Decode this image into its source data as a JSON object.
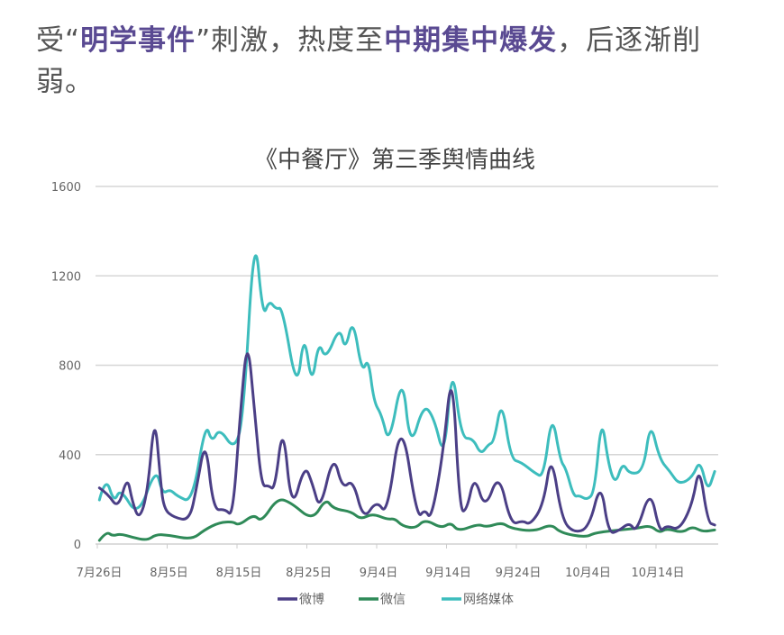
{
  "headline": {
    "p1": "受",
    "q_open": "“",
    "h1": "明学事件",
    "q_close": "”",
    "p2": "刺激，热度至",
    "h2": "中期集中爆发",
    "p3": "，后逐渐削弱。"
  },
  "chart_data": {
    "type": "line",
    "title": "《中餐厅》第三季舆情曲线",
    "xlabel": "",
    "ylabel": "",
    "x_unit": "days since 7月26日",
    "xlim": [
      0,
      88.5
    ],
    "ylim": [
      0,
      1600
    ],
    "yticks": [
      0,
      400,
      800,
      1200,
      1600
    ],
    "xticks": [
      {
        "day": 0,
        "label": "7月26日"
      },
      {
        "day": 10,
        "label": "8月5日"
      },
      {
        "day": 20,
        "label": "8月15日"
      },
      {
        "day": 30,
        "label": "8月25日"
      },
      {
        "day": 40,
        "label": "9月4日"
      },
      {
        "day": 50,
        "label": "9月14日"
      },
      {
        "day": 60,
        "label": "9月24日"
      },
      {
        "day": 70,
        "label": "10月4日"
      },
      {
        "day": 80,
        "label": "10月14日"
      }
    ],
    "grid": true,
    "legend_position": "bottom",
    "series": [
      {
        "name": "微博",
        "color": "#4b3f86",
        "points": [
          [
            0.3,
            251
          ],
          [
            1.5,
            225
          ],
          [
            3,
            157
          ],
          [
            4.3,
            306
          ],
          [
            5,
            190
          ],
          [
            6,
            105
          ],
          [
            7.2,
            230
          ],
          [
            8.2,
            588
          ],
          [
            9,
            300
          ],
          [
            9.5,
            157
          ],
          [
            11,
            118
          ],
          [
            13.2,
            105
          ],
          [
            14.2,
            250
          ],
          [
            15.5,
            480
          ],
          [
            16.6,
            150
          ],
          [
            18.3,
            157
          ],
          [
            19.4,
            120
          ],
          [
            20.5,
            600
          ],
          [
            21.5,
            936
          ],
          [
            22.5,
            600
          ],
          [
            23.5,
            258
          ],
          [
            24.5,
            262
          ],
          [
            25.4,
            240
          ],
          [
            26.6,
            553
          ],
          [
            27.8,
            137
          ],
          [
            29.7,
            358
          ],
          [
            30.8,
            270
          ],
          [
            31.9,
            145
          ],
          [
            33.8,
            407
          ],
          [
            35.1,
            245
          ],
          [
            36.6,
            291
          ],
          [
            38.1,
            105
          ],
          [
            40,
            197
          ],
          [
            41.5,
            125
          ],
          [
            43.5,
            588
          ],
          [
            45.8,
            110
          ],
          [
            46.9,
            157
          ],
          [
            47.8,
            105
          ],
          [
            49.5,
            400
          ],
          [
            50.8,
            815
          ],
          [
            51.9,
            145
          ],
          [
            52.9,
            150
          ],
          [
            54,
            312
          ],
          [
            55.5,
            150
          ],
          [
            57.5,
            325
          ],
          [
            59.2,
            85
          ],
          [
            60.9,
            105
          ],
          [
            62,
            85
          ],
          [
            63.9,
            177
          ],
          [
            65,
            412
          ],
          [
            66.5,
            110
          ],
          [
            68.2,
            50
          ],
          [
            70.4,
            70
          ],
          [
            72.1,
            285
          ],
          [
            73.2,
            44
          ],
          [
            74.7,
            60
          ],
          [
            76.2,
            97
          ],
          [
            77.2,
            50
          ],
          [
            79.2,
            251
          ],
          [
            80.5,
            50
          ],
          [
            81.5,
            85
          ],
          [
            83.3,
            60
          ],
          [
            85.2,
            177
          ],
          [
            86.2,
            358
          ],
          [
            87.4,
            97
          ],
          [
            88.4,
            85
          ]
        ]
      },
      {
        "name": "微信",
        "color": "#2f8a58",
        "points": [
          [
            0.3,
            16
          ],
          [
            1.3,
            56
          ],
          [
            2.2,
            36
          ],
          [
            3.3,
            46
          ],
          [
            5,
            30
          ],
          [
            7.1,
            16
          ],
          [
            8.4,
            43
          ],
          [
            10.2,
            40
          ],
          [
            13.6,
            20
          ],
          [
            15.3,
            63
          ],
          [
            17.5,
            97
          ],
          [
            19.4,
            100
          ],
          [
            20.3,
            83
          ],
          [
            22.4,
            134
          ],
          [
            23.5,
            97
          ],
          [
            25.8,
            207
          ],
          [
            27.8,
            184
          ],
          [
            30.8,
            104
          ],
          [
            32.7,
            204
          ],
          [
            33.8,
            157
          ],
          [
            36.4,
            145
          ],
          [
            37.7,
            110
          ],
          [
            39.4,
            137
          ],
          [
            41.5,
            110
          ],
          [
            42.6,
            114
          ],
          [
            43.7,
            80
          ],
          [
            45.6,
            70
          ],
          [
            46.9,
            111
          ],
          [
            49.3,
            70
          ],
          [
            50.6,
            97
          ],
          [
            51.7,
            56
          ],
          [
            54.5,
            90
          ],
          [
            55.7,
            75
          ],
          [
            57.9,
            97
          ],
          [
            59.2,
            70
          ],
          [
            62.6,
            56
          ],
          [
            65,
            90
          ],
          [
            66.3,
            50
          ],
          [
            69.9,
            30
          ],
          [
            71.2,
            50
          ],
          [
            74.7,
            63
          ],
          [
            77.2,
            70
          ],
          [
            79.2,
            83
          ],
          [
            80.5,
            50
          ],
          [
            81.5,
            70
          ],
          [
            83.7,
            50
          ],
          [
            85.2,
            79
          ],
          [
            86.7,
            55
          ],
          [
            88.4,
            63
          ]
        ]
      },
      {
        "name": "网络媒体",
        "color": "#3dbdbd",
        "points": [
          [
            0.3,
            197
          ],
          [
            1.2,
            305
          ],
          [
            2.4,
            184
          ],
          [
            3.3,
            251
          ],
          [
            5.8,
            117
          ],
          [
            8.4,
            345
          ],
          [
            9.3,
            224
          ],
          [
            10.4,
            245
          ],
          [
            11.4,
            215
          ],
          [
            13.6,
            184
          ],
          [
            15.5,
            547
          ],
          [
            16.4,
            453
          ],
          [
            17.5,
            520
          ],
          [
            19.6,
            419
          ],
          [
            20.9,
            553
          ],
          [
            22.5,
            1433
          ],
          [
            23.7,
            1010
          ],
          [
            24.6,
            1091
          ],
          [
            25.6,
            1050
          ],
          [
            26.5,
            1060
          ],
          [
            28.6,
            674
          ],
          [
            29.6,
            956
          ],
          [
            30.7,
            701
          ],
          [
            31.7,
            910
          ],
          [
            32.7,
            822
          ],
          [
            34.7,
            976
          ],
          [
            35.5,
            862
          ],
          [
            36.6,
            1017
          ],
          [
            37.9,
            762
          ],
          [
            38.8,
            836
          ],
          [
            39.6,
            634
          ],
          [
            40.7,
            580
          ],
          [
            41.8,
            439
          ],
          [
            43.7,
            775
          ],
          [
            44.8,
            419
          ],
          [
            46.7,
            627
          ],
          [
            48.2,
            567
          ],
          [
            49.7,
            372
          ],
          [
            50.8,
            822
          ],
          [
            52.1,
            473
          ],
          [
            53.8,
            473
          ],
          [
            54.9,
            399
          ],
          [
            56,
            446
          ],
          [
            56.8,
            456
          ],
          [
            57.9,
            654
          ],
          [
            59.2,
            379
          ],
          [
            60.7,
            366
          ],
          [
            62.6,
            318
          ],
          [
            63.9,
            298
          ],
          [
            65.1,
            594
          ],
          [
            66.3,
            372
          ],
          [
            67.1,
            338
          ],
          [
            68.2,
            211
          ],
          [
            69,
            218
          ],
          [
            70.1,
            197
          ],
          [
            71.2,
            231
          ],
          [
            72.2,
            580
          ],
          [
            73.2,
            352
          ],
          [
            74.2,
            265
          ],
          [
            75.2,
            366
          ],
          [
            76.2,
            312
          ],
          [
            78.2,
            325
          ],
          [
            79.2,
            553
          ],
          [
            80.5,
            379
          ],
          [
            82,
            325
          ],
          [
            83.3,
            265
          ],
          [
            85.2,
            298
          ],
          [
            86.3,
            379
          ],
          [
            87.4,
            231
          ],
          [
            88.4,
            325
          ]
        ]
      }
    ]
  }
}
